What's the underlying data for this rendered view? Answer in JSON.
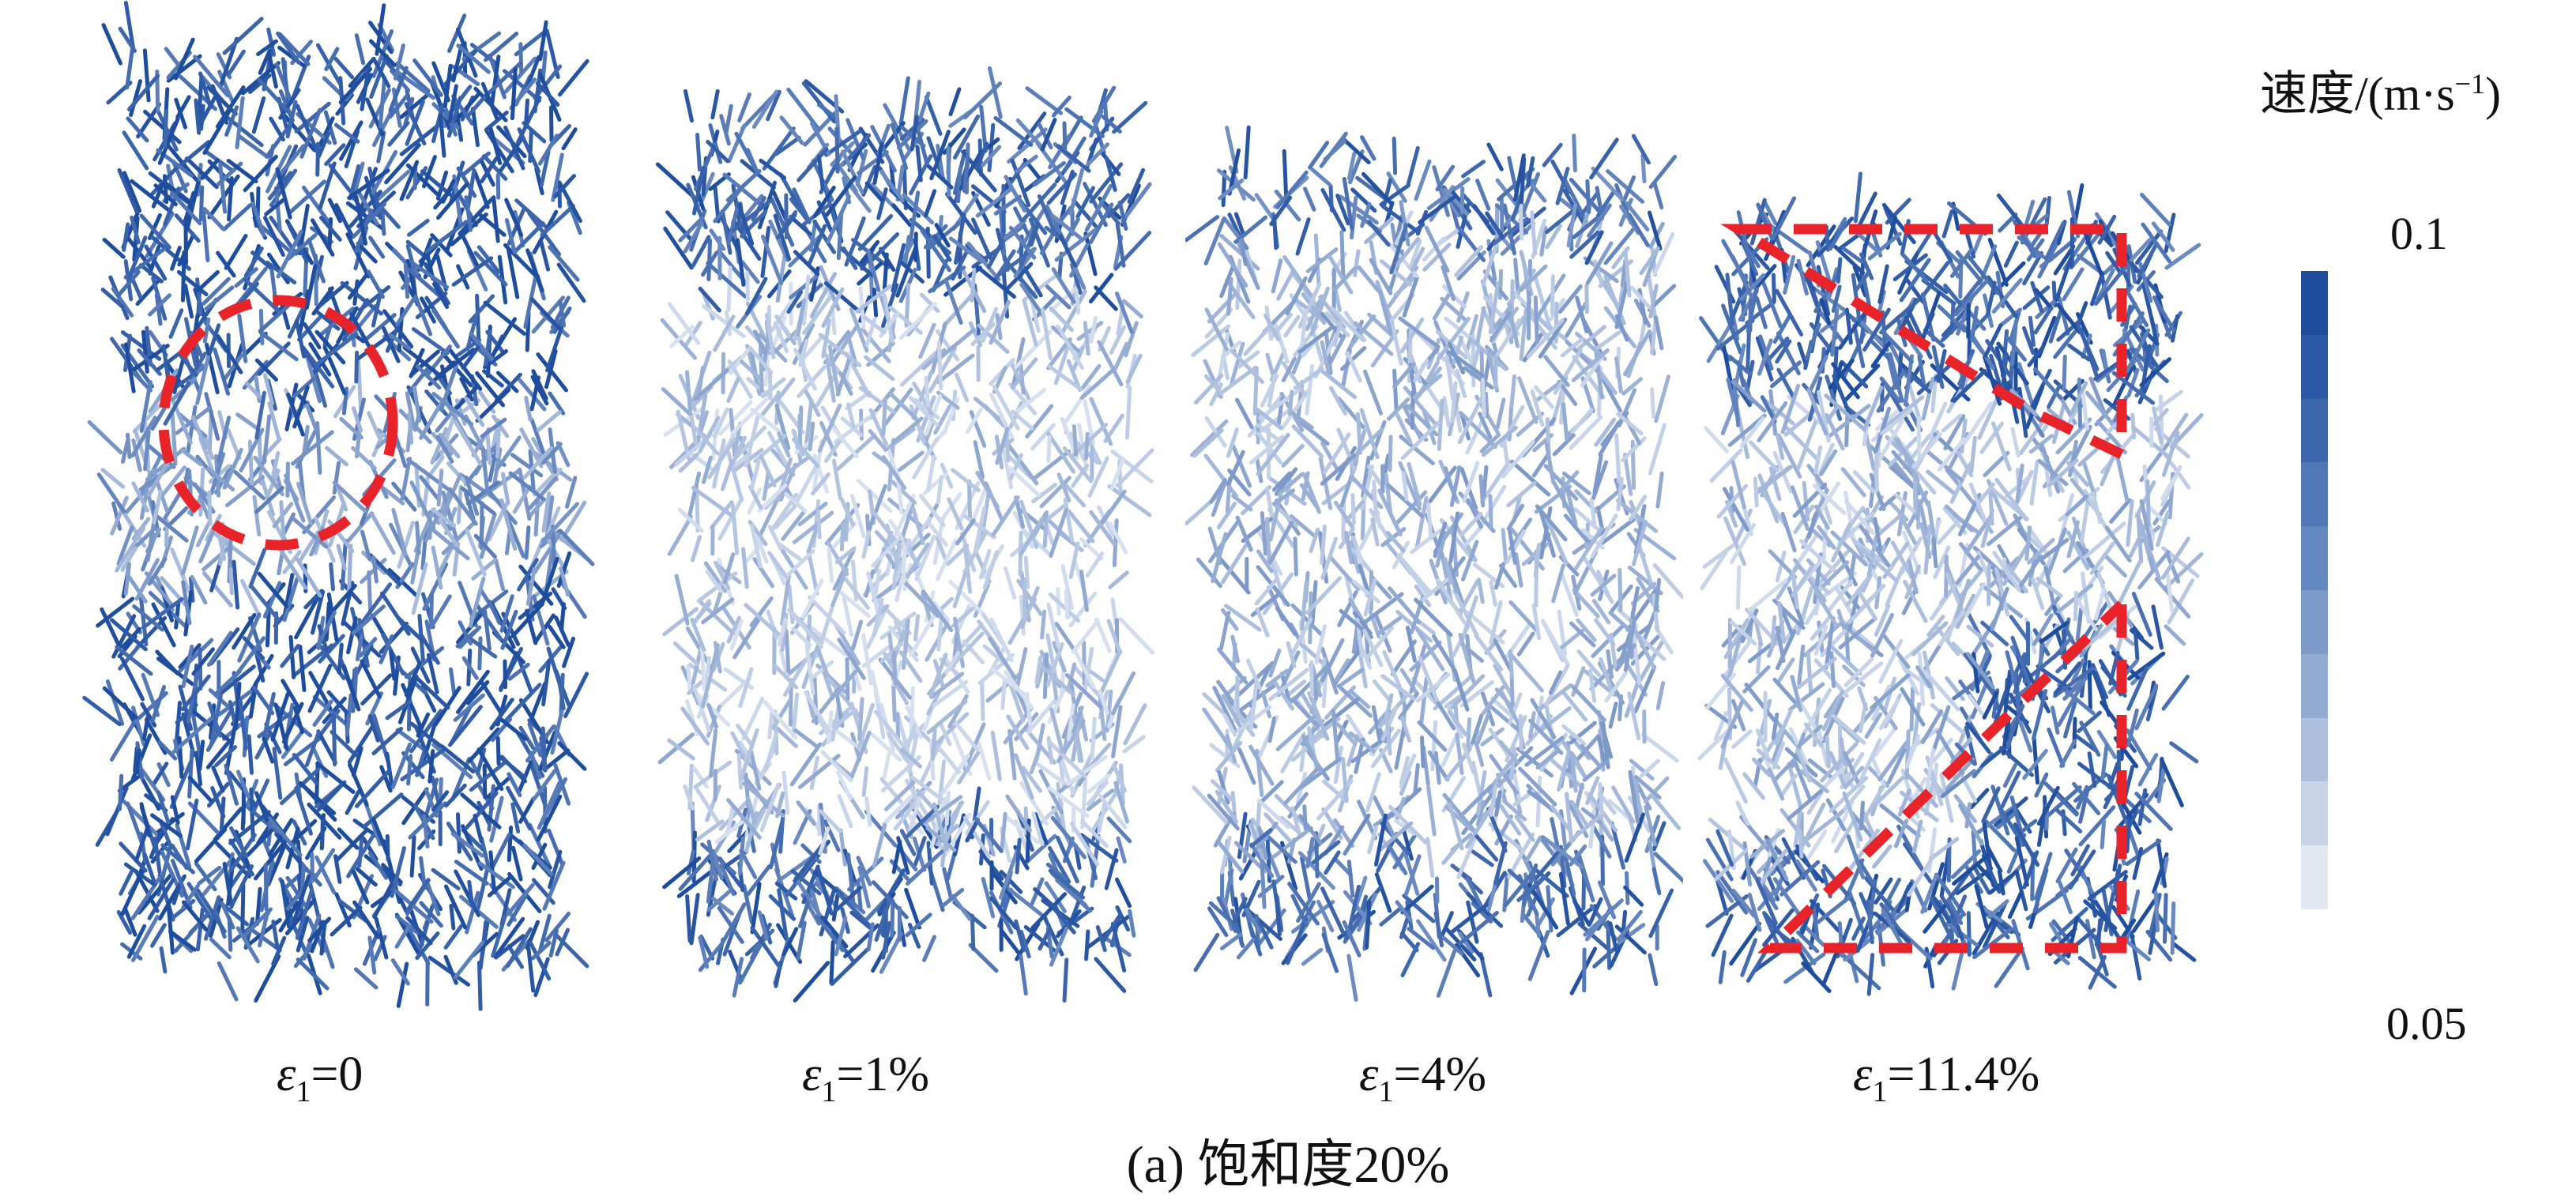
{
  "legend": {
    "title_main": "速度/(m·s",
    "title_sup": "−1",
    "title_end": ")",
    "max_label": "0.1",
    "min_label": "0.05",
    "colors_top_to_bottom": [
      "#1e4d9e",
      "#2d5aa7",
      "#3d67ad",
      "#5078b6",
      "#6387bf",
      "#7b9ac9",
      "#93acd3",
      "#adc0dd",
      "#c8d5e8",
      "#e1e8f2"
    ]
  },
  "panels": [
    {
      "eps": "ε",
      "sub": "1",
      "value": "=0",
      "highlight": "circle"
    },
    {
      "eps": "ε",
      "sub": "1",
      "value": "=1%",
      "highlight": "none"
    },
    {
      "eps": "ε",
      "sub": "1",
      "value": "=4%",
      "highlight": "none"
    },
    {
      "eps": "ε",
      "sub": "1",
      "value": "=11.4%",
      "highlight": "dashed-box-with-diagonals"
    }
  ],
  "caption": "(a) 饱和度20%",
  "colors": {
    "arrow_dark": "#1e4d9e",
    "arrow_light": "#d6e0ef",
    "highlight": "#e8232a"
  }
}
